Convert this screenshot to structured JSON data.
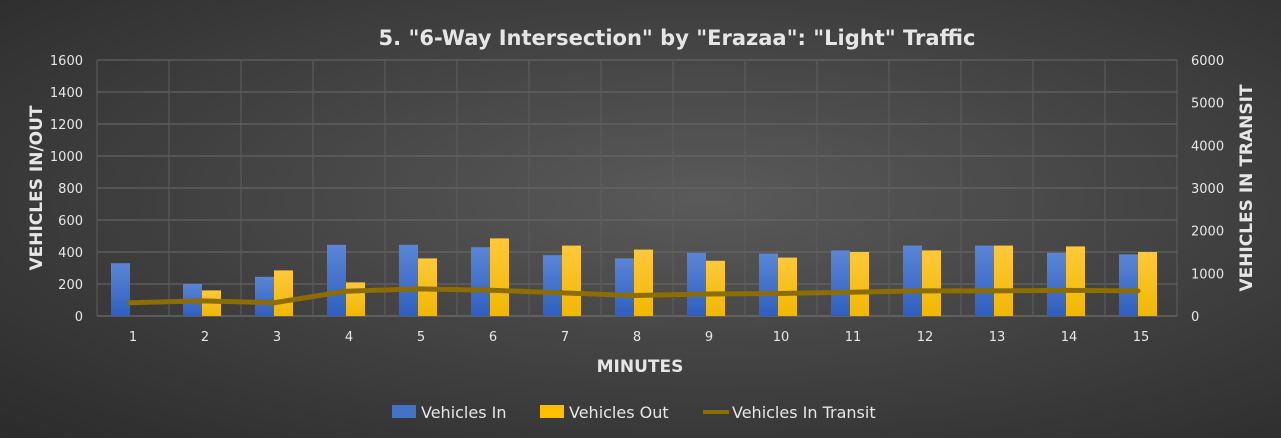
{
  "chart_data": {
    "type": "bar",
    "title": "5. \"6-Way Intersection\" by \"Erazaa\": \"Light\" Traffic",
    "xlabel": "MINUTES",
    "ylabel": "VEHICLES IN/OUT",
    "y2label": "VEHICLES IN TRANSIT",
    "ylim": [
      0,
      1600
    ],
    "y2lim": [
      0,
      6000
    ],
    "yticks": [
      "0",
      "200",
      "400",
      "600",
      "800",
      "1000",
      "1200",
      "1400",
      "1600"
    ],
    "y2ticks": [
      "0",
      "1000",
      "2000",
      "3000",
      "4000",
      "5000",
      "6000"
    ],
    "categories": [
      "1",
      "2",
      "3",
      "4",
      "5",
      "6",
      "7",
      "8",
      "9",
      "10",
      "11",
      "12",
      "13",
      "14",
      "15"
    ],
    "grid": true,
    "legend_position": "bottom",
    "series": [
      {
        "name": "Vehicles In",
        "type": "bar",
        "axis": "left",
        "color": "#4472c4",
        "values": [
          330,
          200,
          245,
          445,
          445,
          430,
          380,
          360,
          395,
          390,
          410,
          440,
          440,
          395,
          385
        ]
      },
      {
        "name": "Vehicles Out",
        "type": "bar",
        "axis": "left",
        "color": "#ffc000",
        "values": [
          0,
          160,
          285,
          210,
          360,
          485,
          440,
          415,
          345,
          365,
          400,
          410,
          440,
          435,
          400
        ]
      },
      {
        "name": "Vehicles In Transit",
        "type": "line",
        "axis": "right",
        "color": "#8c6d00",
        "values": [
          310,
          355,
          310,
          580,
          637,
          604,
          543,
          480,
          515,
          527,
          557,
          590,
          590,
          600,
          590
        ]
      }
    ]
  }
}
